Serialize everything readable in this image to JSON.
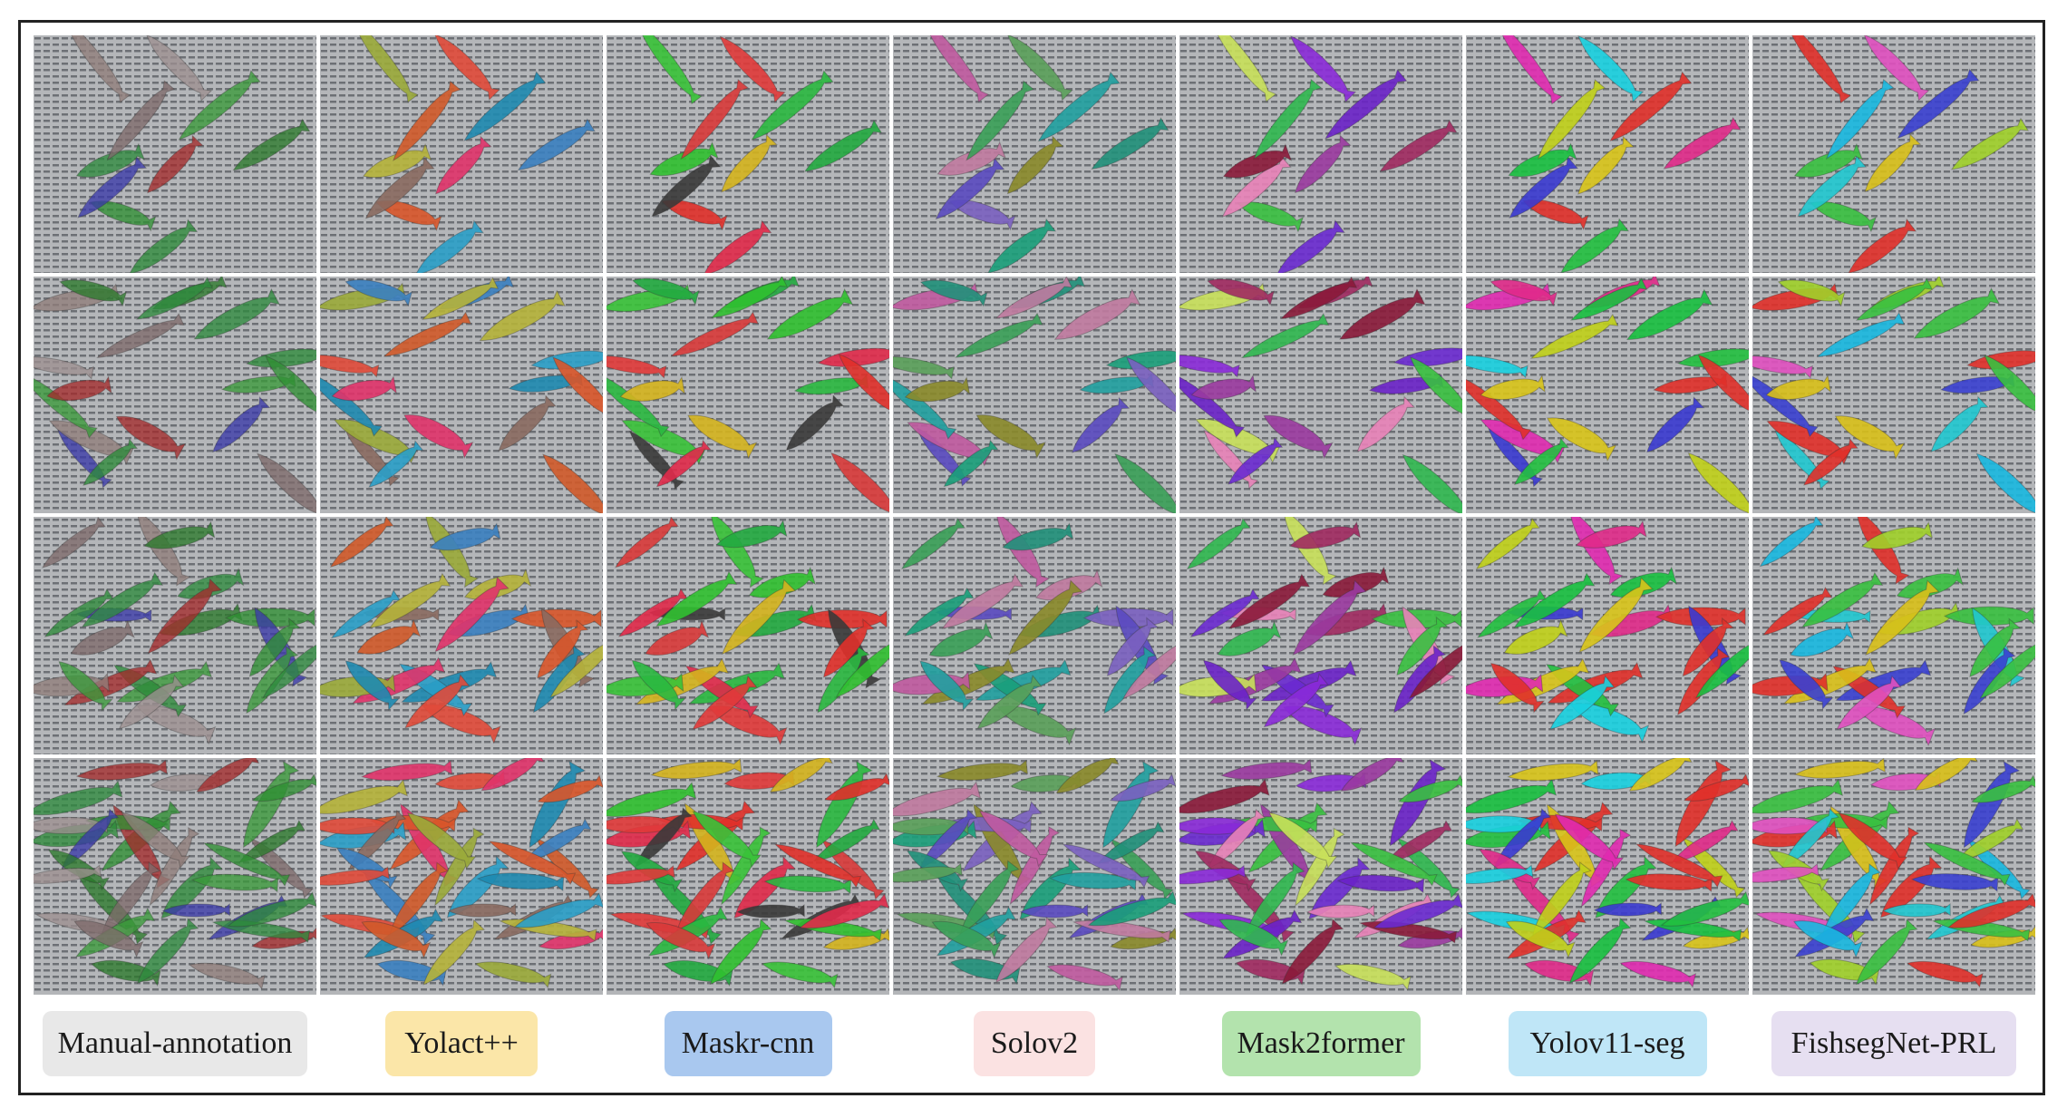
{
  "figure": {
    "columns": [
      {
        "label": "Manual-annotation",
        "badge_color": "#e8e8e8"
      },
      {
        "label": "Yolact++",
        "badge_color": "#fbe6a8"
      },
      {
        "label": "Maskr-cnn",
        "badge_color": "#a9c8ef"
      },
      {
        "label": "Solov2",
        "badge_color": "#fbe2e2"
      },
      {
        "label": "Mask2former",
        "badge_color": "#b3e3ad"
      },
      {
        "label": "Yolov11-seg",
        "badge_color": "#bfe6f7"
      },
      {
        "label": "FishsegNet-PRL",
        "badge_color": "#e6dff1"
      }
    ],
    "rows": 4,
    "palettes": [
      [
        "#a32b2b",
        "#9c8f8f",
        "#2f8f33",
        "#3a3aa8",
        "#8f7e7a",
        "#2d8b3a",
        "#3a9a3a",
        "#2e8b3e",
        "#7e6a6a",
        "#2b7a2b"
      ],
      [
        "#e0336a",
        "#e04a3a",
        "#d8552a",
        "#8a6a60",
        "#9aaa3a",
        "#2a9ec8",
        "#1e8ab0",
        "#b5b23a",
        "#d05a2a",
        "#3a80c0"
      ],
      [
        "#d4b41e",
        "#e03a3a",
        "#e0302a",
        "#3a3a3a",
        "#38c238",
        "#e02a4a",
        "#2ab840",
        "#30c030",
        "#d83a3a",
        "#22aa40"
      ],
      [
        "#8a8a2a",
        "#5aa05a",
        "#7a60c0",
        "#5a4ac0",
        "#c05aa0",
        "#1a9e7a",
        "#20a0a0",
        "#c07aa0",
        "#3aa058",
        "#20907a"
      ],
      [
        "#9a3aa0",
        "#8a2ad8",
        "#38c040",
        "#e882b8",
        "#c8e05a",
        "#6a2ad0",
        "#6a22c8",
        "#8a1a3a",
        "#30b850",
        "#a02a60"
      ],
      [
        "#d8c41a",
        "#18d0e0",
        "#e0302a",
        "#3a3ad0",
        "#e02ab0",
        "#22c040",
        "#e0302a",
        "#18c040",
        "#c0d01a",
        "#e02a8a"
      ],
      [
        "#d8c01a",
        "#e050c0",
        "#38c040",
        "#20c8d0",
        "#e0302a",
        "#e0302a",
        "#3a40d0",
        "#38c040",
        "#18b8e0",
        "#a0d02a"
      ]
    ]
  }
}
